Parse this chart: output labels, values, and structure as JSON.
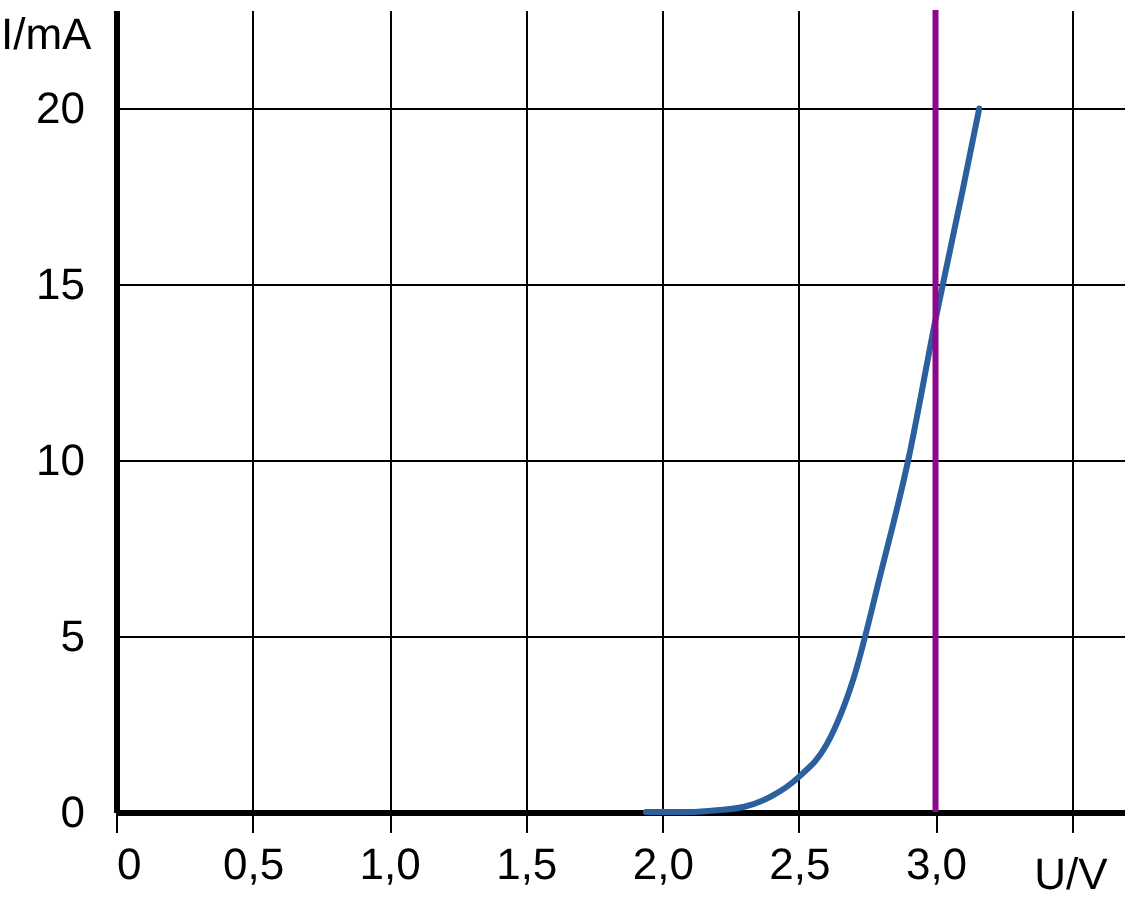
{
  "chart_data": {
    "type": "line",
    "xlabel": "U/V",
    "ylabel": "I/mA",
    "x": [
      1.94,
      2.1,
      2.2,
      2.3,
      2.4,
      2.5,
      2.6,
      2.7,
      2.8,
      2.9,
      3.0,
      3.1,
      3.16
    ],
    "series": [
      {
        "color": "#2b5f9e",
        "values": [
          0,
          0,
          0.05,
          0.15,
          0.45,
          1.0,
          1.9,
          3.8,
          6.8,
          10.0,
          14.0,
          17.7,
          20
        ]
      }
    ],
    "xlim": [
      0,
      3.69
    ],
    "ylim": [
      0,
      22.8
    ],
    "xticks": [
      0,
      {
        "value": 0.5,
        "label": "0,5"
      },
      {
        "value": 1.0,
        "label": "1,0"
      },
      {
        "value": 1.5,
        "label": "1,5"
      },
      {
        "value": 2.0,
        "label": "2,0"
      },
      {
        "value": 2.5,
        "label": "2,5"
      },
      {
        "value": 3.0,
        "label": "3,0"
      },
      {
        "value": 3.5,
        "label": null
      }
    ],
    "yticks": [
      0,
      5,
      10,
      15,
      20
    ],
    "grid": true,
    "ref_lines": [
      {
        "axis": "x",
        "value": 3.0,
        "color": "#8b0a8b"
      }
    ]
  }
}
